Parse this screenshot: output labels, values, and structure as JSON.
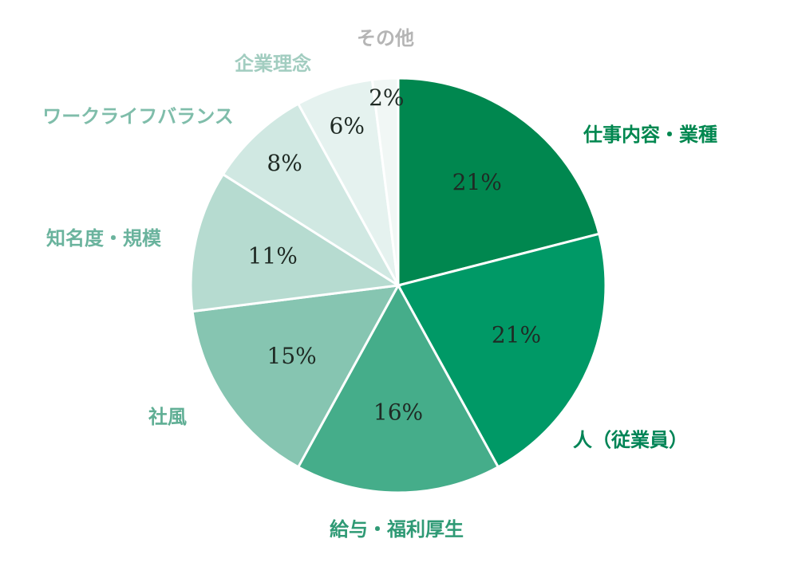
{
  "chart_data": {
    "type": "pie",
    "title": "",
    "slices": [
      {
        "label": "仕事内容・業種",
        "value": 21,
        "value_label": "21%",
        "color": "#00874f",
        "label_color": "#00874f"
      },
      {
        "label": "人（従業員）",
        "value": 21,
        "value_label": "21%",
        "color": "#009966",
        "label_color": "#008456"
      },
      {
        "label": "給与・福利厚生",
        "value": 16,
        "value_label": "16%",
        "color": "#45ad8a",
        "label_color": "#2f9a75"
      },
      {
        "label": "社風",
        "value": 15,
        "value_label": "15%",
        "color": "#86c5b1",
        "label_color": "#5fae94"
      },
      {
        "label": "知名度・規模",
        "value": 11,
        "value_label": "11%",
        "color": "#b6dbd0",
        "label_color": "#6ab39d"
      },
      {
        "label": "ワークライフバランス",
        "value": 8,
        "value_label": "8%",
        "color": "#d0e8e2",
        "label_color": "#7fbdaa"
      },
      {
        "label": "企業理念",
        "value": 6,
        "value_label": "6%",
        "color": "#e5f2ef",
        "label_color": "#a2cdc0"
      },
      {
        "label": "その他",
        "value": 2,
        "value_label": "2%",
        "color": "#f1f7f5",
        "label_color": "#b5b5b5"
      }
    ],
    "start_angle_deg": 0,
    "direction": "clockwise",
    "legend": "none"
  }
}
